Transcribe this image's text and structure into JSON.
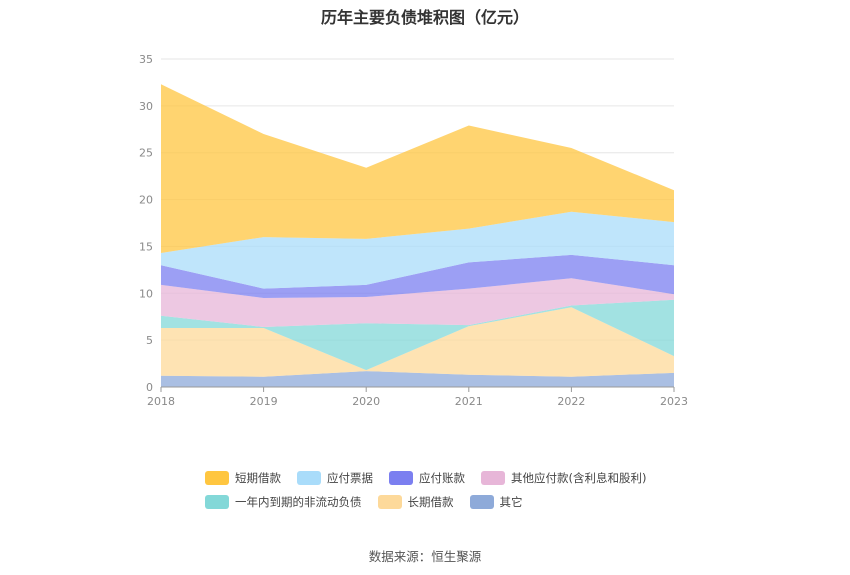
{
  "chart_data": {
    "type": "area",
    "stacked": true,
    "title": "历年主要负债堆积图（亿元）",
    "x": [
      "2018",
      "2019",
      "2020",
      "2021",
      "2022",
      "2023"
    ],
    "ylim": [
      0,
      35
    ],
    "yticks": [
      0,
      5,
      10,
      15,
      20,
      25,
      30,
      35
    ],
    "grid": "horizontal",
    "legend_position": "bottom",
    "series": [
      {
        "name": "其它",
        "color": "#8eaad9",
        "values": [
          1.2,
          1.1,
          1.7,
          1.3,
          1.1,
          1.5
        ]
      },
      {
        "name": "长期借款",
        "color": "#fdd99a",
        "values": [
          5.1,
          5.2,
          0.1,
          5.2,
          7.4,
          1.8
        ]
      },
      {
        "name": "一年内到期的非流动负债",
        "color": "#83d8d8",
        "values": [
          1.3,
          0.1,
          5.0,
          0.1,
          0.2,
          6.0
        ]
      },
      {
        "name": "其他应付款(含利息和股利)",
        "color": "#e7b6d8",
        "values": [
          3.3,
          3.1,
          2.8,
          3.9,
          2.9,
          0.6
        ]
      },
      {
        "name": "应付账款",
        "color": "#7b7ff0",
        "values": [
          2.1,
          1.0,
          1.3,
          2.8,
          2.5,
          3.1
        ]
      },
      {
        "name": "应付票据",
        "color": "#a9dcfa",
        "values": [
          1.3,
          5.5,
          4.9,
          3.6,
          4.6,
          4.6
        ]
      },
      {
        "name": "短期借款",
        "color": "#ffc640",
        "values": [
          18.0,
          11.0,
          7.6,
          11.0,
          6.8,
          3.4
        ]
      }
    ],
    "legend_order": [
      "短期借款",
      "应付票据",
      "应付账款",
      "其他应付款(含利息和股利)",
      "一年内到期的非流动负债",
      "长期借款",
      "其它"
    ]
  },
  "source_text": "数据来源：恒生聚源"
}
